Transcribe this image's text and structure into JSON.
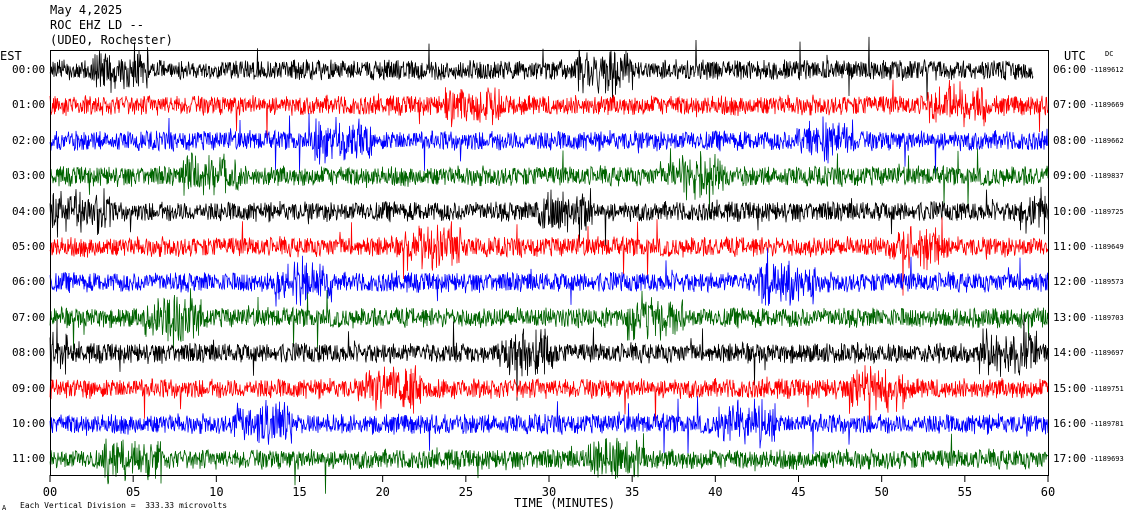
{
  "header": {
    "date": "May 4,2025",
    "station": "ROC EHZ LD --",
    "network": "(UDEO, Rochester)"
  },
  "left_tz": "EST",
  "right_tz": "UTC",
  "dc_label": "DC",
  "footer": {
    "scale_note": "Each Vertical Division =  333.33 microvolts",
    "corner_mark": "A"
  },
  "colors": {
    "black": "#000000",
    "red": "#ff0000",
    "blue": "#0000ff",
    "green": "#006400"
  },
  "chart_data": {
    "type": "line",
    "xlabel": "TIME (MINUTES)",
    "xlim": [
      0,
      60
    ],
    "x_ticks": [
      "00",
      "05",
      "10",
      "15",
      "20",
      "25",
      "30",
      "35",
      "40",
      "45",
      "50",
      "55",
      "60"
    ],
    "grid": false,
    "rows": [
      {
        "est": "00:00",
        "utc": "06:00",
        "dc": "-1189612"
      },
      {
        "est": "01:00",
        "utc": "07:00",
        "dc": "-1189669"
      },
      {
        "est": "02:00",
        "utc": "08:00",
        "dc": "-1189662"
      },
      {
        "est": "03:00",
        "utc": "09:00",
        "dc": "-1189837"
      },
      {
        "est": "04:00",
        "utc": "10:00",
        "dc": "-1189725"
      },
      {
        "est": "05:00",
        "utc": "11:00",
        "dc": "-1189649"
      },
      {
        "est": "06:00",
        "utc": "12:00",
        "dc": "-1189573"
      },
      {
        "est": "07:00",
        "utc": "13:00",
        "dc": "-1189703"
      },
      {
        "est": "08:00",
        "utc": "14:00",
        "dc": "-1189697"
      },
      {
        "est": "09:00",
        "utc": "15:00",
        "dc": "-1189751"
      },
      {
        "est": "10:00",
        "utc": "16:00",
        "dc": "-1189781"
      },
      {
        "est": "11:00",
        "utc": "17:00",
        "dc": "-1189693"
      }
    ],
    "trace_colors": [
      "#000000",
      "#ff0000",
      "#0000ff",
      "#006400"
    ]
  }
}
